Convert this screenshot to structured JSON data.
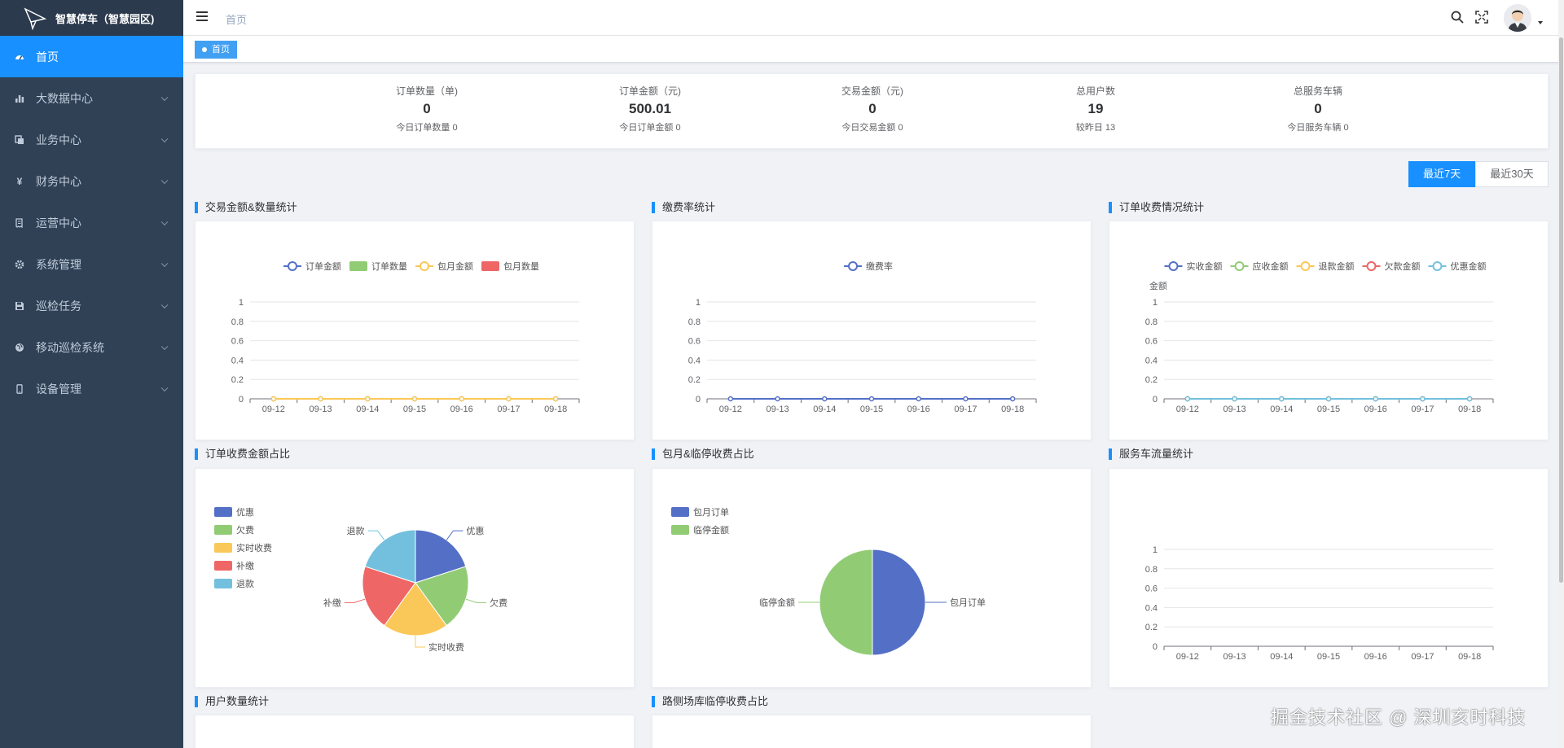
{
  "app": {
    "title": "智慧停车（智慧园区)"
  },
  "sidebar": {
    "items": [
      {
        "label": "首页",
        "icon": "dashboard-icon",
        "active": true
      },
      {
        "label": "大数据中心",
        "icon": "bar-chart-icon"
      },
      {
        "label": "业务中心",
        "icon": "documents-icon"
      },
      {
        "label": "财务中心",
        "icon": "yen-icon"
      },
      {
        "label": "运营中心",
        "icon": "receipt-icon"
      },
      {
        "label": "系统管理",
        "icon": "gear-icon"
      },
      {
        "label": "巡检任务",
        "icon": "save-icon"
      },
      {
        "label": "移动巡检系统",
        "icon": "globe-icon"
      },
      {
        "label": "设备管理",
        "icon": "mobile-icon"
      }
    ]
  },
  "header": {
    "breadcrumb": "首页",
    "tag": "首页"
  },
  "stats": [
    {
      "label": "订单数量（单)",
      "value": "0",
      "sub": "今日订单数量 0"
    },
    {
      "label": "订单金额（元)",
      "value": "500.01",
      "sub": "今日订单金额 0"
    },
    {
      "label": "交易金额（元)",
      "value": "0",
      "sub": "今日交易金额 0"
    },
    {
      "label": "总用户数",
      "value": "19",
      "sub": "较昨日 13"
    },
    {
      "label": "总服务车辆",
      "value": "0",
      "sub": "今日服务车辆 0"
    }
  ],
  "range": {
    "week": "最近7天",
    "month": "最近30天",
    "selected": "week"
  },
  "panels": {
    "p1": "交易金额&数量统计",
    "p2": "缴费率统计",
    "p3": "订单收费情况统计",
    "p4": "订单收费金额占比",
    "p5": "包月&临停收费占比",
    "p6": "服务车流量统计",
    "p7": "用户数量统计",
    "p8": "路侧场库临停收费占比"
  },
  "watermark": "掘金技术社区 @ 深圳亥时科技",
  "colors": {
    "primary": "#1890ff",
    "sidebar": "#304156",
    "blue": "#5470c6",
    "green": "#91cc75",
    "yellow": "#fac858",
    "red": "#ee6666",
    "cyan": "#73c0de"
  },
  "chart_data": [
    {
      "type": "line",
      "title": "交易金额&数量统计",
      "categories": [
        "09-12",
        "09-13",
        "09-14",
        "09-15",
        "09-16",
        "09-17",
        "09-18"
      ],
      "ylim": [
        0,
        1
      ],
      "yticks": [
        "0",
        "0.2",
        "0.4",
        "0.6",
        "0.8",
        "1"
      ],
      "series": [
        {
          "name": "订单金额",
          "kind": "line",
          "color": "#5470c6",
          "values": [
            0,
            0,
            0,
            0,
            0,
            0,
            0
          ]
        },
        {
          "name": "订单数量",
          "kind": "bar",
          "color": "#91cc75",
          "values": [
            0,
            0,
            0,
            0,
            0,
            0,
            0
          ]
        },
        {
          "name": "包月金额",
          "kind": "line",
          "color": "#fac858",
          "values": [
            0,
            0,
            0,
            0,
            0,
            0,
            0
          ]
        },
        {
          "name": "包月数量",
          "kind": "bar",
          "color": "#ee6666",
          "values": [
            0,
            0,
            0,
            0,
            0,
            0,
            0
          ]
        }
      ]
    },
    {
      "type": "line",
      "title": "缴费率统计",
      "categories": [
        "09-12",
        "09-13",
        "09-14",
        "09-15",
        "09-16",
        "09-17",
        "09-18"
      ],
      "ylim": [
        0,
        1
      ],
      "yticks": [
        "0",
        "0.2",
        "0.4",
        "0.6",
        "0.8",
        "1"
      ],
      "series": [
        {
          "name": "缴费率",
          "kind": "line",
          "color": "#5470c6",
          "values": [
            0,
            0,
            0,
            0,
            0,
            0,
            0
          ]
        }
      ]
    },
    {
      "type": "line",
      "title": "订单收费情况统计",
      "ylabel": "金额",
      "categories": [
        "09-12",
        "09-13",
        "09-14",
        "09-15",
        "09-16",
        "09-17",
        "09-18"
      ],
      "ylim": [
        0,
        1
      ],
      "yticks": [
        "0",
        "0.2",
        "0.4",
        "0.6",
        "0.8",
        "1"
      ],
      "series": [
        {
          "name": "实收金额",
          "kind": "line",
          "color": "#5470c6",
          "values": [
            0,
            0,
            0,
            0,
            0,
            0,
            0
          ]
        },
        {
          "name": "应收金额",
          "kind": "line",
          "color": "#91cc75",
          "values": [
            0,
            0,
            0,
            0,
            0,
            0,
            0
          ]
        },
        {
          "name": "退款金额",
          "kind": "line",
          "color": "#fac858",
          "values": [
            0,
            0,
            0,
            0,
            0,
            0,
            0
          ]
        },
        {
          "name": "欠款金额",
          "kind": "line",
          "color": "#ee6666",
          "values": [
            0,
            0,
            0,
            0,
            0,
            0,
            0
          ]
        },
        {
          "name": "优惠金额",
          "kind": "line",
          "color": "#73c0de",
          "values": [
            0,
            0,
            0,
            0,
            0,
            0,
            0
          ]
        }
      ]
    },
    {
      "type": "pie",
      "title": "订单收费金额占比",
      "labels": [
        "优惠",
        "欠费",
        "实时收费",
        "补缴",
        "退款"
      ],
      "values": [
        1,
        1,
        1,
        1,
        1
      ],
      "colors": [
        "#5470c6",
        "#91cc75",
        "#fac858",
        "#ee6666",
        "#73c0de"
      ],
      "legend": "left"
    },
    {
      "type": "pie",
      "title": "包月&临停收费占比",
      "labels": [
        "包月订单",
        "临停金额"
      ],
      "values": [
        1,
        1
      ],
      "colors": [
        "#5470c6",
        "#91cc75"
      ],
      "legend": "top-left"
    },
    {
      "type": "line",
      "title": "服务车流量统计",
      "categories": [
        "09-12",
        "09-13",
        "09-14",
        "09-15",
        "09-16",
        "09-17",
        "09-18"
      ],
      "ylim": [
        0,
        1
      ],
      "yticks": [
        "0",
        "0.2",
        "0.4",
        "0.6",
        "0.8",
        "1"
      ],
      "series": []
    }
  ]
}
